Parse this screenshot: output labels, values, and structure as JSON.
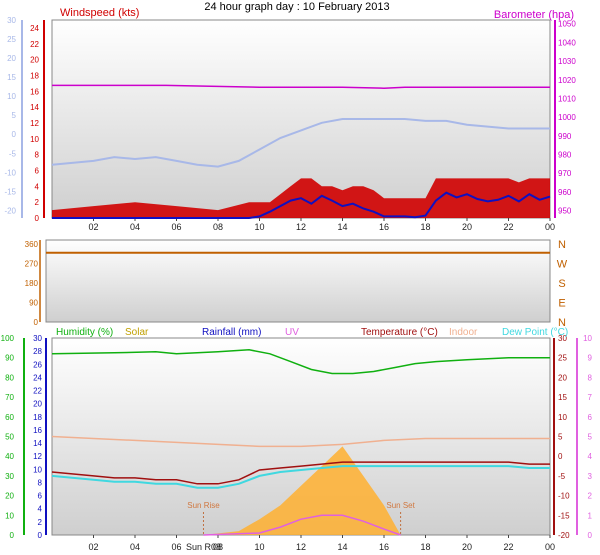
{
  "title": "24 hour graph day : 10 February 2013",
  "colors": {
    "wind": "#d00000",
    "barometer": "#cc00cc",
    "gust_line": "#1010c0",
    "temp_line": "#a01010",
    "dew_line": "#40d8e0",
    "humidity_line": "#10b010",
    "indoor_line": "#f0b090",
    "solar_fill": "#ffb030",
    "uv_line": "#e060e0",
    "direction": "#c06000",
    "axis_blue": "#a8b8e8"
  },
  "chart_data": [
    {
      "type": "line",
      "id": "wind_baro",
      "title": "",
      "x_ticks": [
        "02",
        "04",
        "06",
        "08",
        "10",
        "12",
        "14",
        "16",
        "18",
        "20",
        "22",
        "00"
      ],
      "left_axis": {
        "label": "Windspeed (kts)",
        "ticks": [
          "0",
          "2",
          "4",
          "6",
          "8",
          "10",
          "12",
          "14",
          "16",
          "18",
          "20",
          "22",
          "24"
        ],
        "ylim": [
          0,
          25
        ]
      },
      "outer_left_axis": {
        "ticks": [
          "-20",
          "-15",
          "-10",
          "-5",
          "0",
          "5",
          "10",
          "15",
          "20",
          "25",
          "30"
        ],
        "ylim": [
          -22,
          30
        ]
      },
      "right_axis": {
        "label": "Barometer (hpa)",
        "ticks": [
          "950",
          "960",
          "970",
          "980",
          "990",
          "1000",
          "1010",
          "1020",
          "1030",
          "1040",
          "1050"
        ],
        "ylim": [
          946,
          1052
        ]
      },
      "series": [
        {
          "axis": "right",
          "hours": [
            0,
            5.5,
            10,
            14,
            16,
            17,
            24
          ],
          "values": [
            1017,
            1017,
            1016,
            1016,
            1015.5,
            1016,
            1016
          ]
        },
        {
          "axis": "outer_left",
          "hours": [
            0,
            2,
            3,
            4,
            5,
            6,
            7,
            8,
            9,
            10,
            11,
            12,
            13,
            14,
            15,
            16,
            17,
            18,
            19,
            20,
            21,
            22,
            23,
            24
          ],
          "values": [
            -8,
            -7,
            -6,
            -6.5,
            -6,
            -7,
            -8,
            -8.5,
            -7,
            -4,
            -1,
            1,
            3,
            4,
            4,
            4,
            4,
            3.5,
            3.5,
            2.5,
            2,
            1.5,
            1.5,
            1.5
          ]
        },
        {
          "axis": "left",
          "hours": [
            0,
            2,
            4,
            6,
            8,
            9.5,
            10,
            10.5,
            11,
            11.5,
            12,
            12.5,
            13,
            13.5,
            14,
            14.5,
            15,
            15.5,
            16,
            16.5,
            17,
            17.5,
            18,
            18.5,
            19,
            19.5,
            20,
            20.5,
            21,
            21.5,
            22,
            22.5,
            23,
            23.5,
            24
          ],
          "values": [
            0,
            0,
            0,
            0,
            0,
            0,
            0.2,
            0.8,
            1.5,
            2.2,
            2.5,
            1.8,
            2.8,
            2.2,
            1.5,
            1.8,
            1.2,
            0.8,
            0.2,
            0.2,
            0.2,
            0.1,
            0.3,
            2.2,
            3.2,
            2.6,
            3.0,
            2.4,
            2.1,
            2.3,
            2.8,
            2.1,
            3.0,
            2.3,
            2.7
          ]
        },
        {
          "axis": "left",
          "hours": [
            0,
            2,
            4,
            6,
            8,
            9.5,
            10,
            10.5,
            11,
            11.5,
            12,
            12.5,
            13,
            13.5,
            14,
            14.5,
            15,
            15.5,
            16,
            16.5,
            17,
            17.5,
            18,
            18.5,
            19,
            19.5,
            20,
            20.5,
            21,
            21.5,
            22,
            22.5,
            23,
            23.5,
            24
          ],
          "values": [
            1,
            1.5,
            2,
            1.5,
            1,
            2,
            2,
            2,
            3,
            4,
            5,
            5,
            4,
            4,
            3.5,
            4,
            4,
            3.5,
            2.5,
            2.5,
            2.5,
            2.5,
            2.5,
            5,
            5,
            5,
            5,
            5,
            5,
            5,
            5,
            4.5,
            5,
            5,
            5
          ]
        }
      ]
    },
    {
      "type": "line",
      "id": "direction",
      "title": "",
      "x_ticks": [],
      "left_axis": {
        "ticks": [
          "0",
          "90",
          "180",
          "270",
          "360"
        ],
        "ylim": [
          0,
          360
        ]
      },
      "right_axis": {
        "ticks": [
          "N",
          "E",
          "S",
          "W",
          "N"
        ]
      },
      "series": [
        {
          "axis": "left",
          "hours": [
            0,
            24
          ],
          "values": [
            320,
            320
          ]
        }
      ]
    },
    {
      "type": "line",
      "id": "thermo",
      "title": "",
      "legend": [
        "Humidity (%)",
        "Solar",
        "Rainfall (mm)",
        "UV",
        "Temperature (°C)",
        "Indoor",
        "Dew Point (°C)"
      ],
      "x_ticks": [
        "02",
        "04",
        "06",
        "08",
        "10",
        "12",
        "14",
        "16",
        "18",
        "20",
        "22",
        "00"
      ],
      "humidity_axis": {
        "ticks": [
          "0",
          "10",
          "20",
          "30",
          "40",
          "50",
          "60",
          "70",
          "80",
          "90",
          "100"
        ],
        "ylim": [
          0,
          100
        ]
      },
      "rain_axis": {
        "ticks": [
          "0",
          "2",
          "4",
          "6",
          "8",
          "10",
          "12",
          "14",
          "16",
          "18",
          "20",
          "22",
          "24",
          "26",
          "28",
          "30"
        ],
        "ylim": [
          0,
          30
        ]
      },
      "temp_axis": {
        "ticks": [
          "-20",
          "-15",
          "-10",
          "-5",
          "0",
          "5",
          "10",
          "15",
          "20",
          "25",
          "30"
        ],
        "ylim": [
          -20,
          30
        ]
      },
      "uv_axis": {
        "ticks": [
          "0",
          "1",
          "2",
          "3",
          "4",
          "5",
          "6",
          "7",
          "8",
          "9",
          "10"
        ],
        "ylim": [
          0,
          10
        ]
      },
      "annotations": {
        "sun_rise": "Sun Rise",
        "sun_set": "Sun Set",
        "sunrise_time": "Sun R08",
        "sunrise_hour": 7.3,
        "sunset_hour": 16.8
      },
      "series": [
        {
          "axis": "humidity",
          "hours": [
            0,
            3,
            5,
            6,
            8,
            9.5,
            10.5,
            11.5,
            12.5,
            13.5,
            14.5,
            15.5,
            16.5,
            17.5,
            18.5,
            20,
            22,
            24
          ],
          "values": [
            92,
            92.5,
            93,
            92,
            93,
            94,
            92,
            88,
            84,
            82,
            82,
            83,
            85,
            87,
            88,
            89,
            90,
            90
          ]
        },
        {
          "axis": "temp",
          "hours": [
            0,
            2,
            3,
            4,
            5,
            6,
            7,
            8,
            9,
            10,
            11,
            12,
            13,
            14,
            15,
            16,
            17,
            18,
            19,
            20,
            21,
            22,
            23,
            24
          ],
          "values": [
            -4.0,
            -5.0,
            -5.5,
            -5.5,
            -6.0,
            -6.0,
            -7.0,
            -7.0,
            -6.0,
            -3.5,
            -3.0,
            -2.5,
            -2.0,
            -1.5,
            -1.5,
            -1.5,
            -1.5,
            -1.5,
            -1.5,
            -1.5,
            -1.5,
            -1.5,
            -2.0,
            -2.0
          ]
        },
        {
          "axis": "temp",
          "hours": [
            0,
            2,
            3,
            4,
            5,
            6,
            7,
            8,
            9,
            10,
            11,
            12,
            13,
            14,
            15,
            16,
            17,
            18,
            19,
            20,
            21,
            22,
            23,
            24
          ],
          "values": [
            -5.0,
            -6.0,
            -6.5,
            -6.5,
            -7.0,
            -7.0,
            -8.0,
            -8.0,
            -7.0,
            -5.0,
            -4.0,
            -3.5,
            -3.0,
            -2.5,
            -2.5,
            -2.5,
            -2.5,
            -2.5,
            -2.5,
            -2.5,
            -2.5,
            -2.5,
            -3.0,
            -3.0
          ]
        },
        {
          "axis": "temp",
          "hours": [
            0,
            2,
            4,
            6,
            8,
            10,
            12,
            14,
            16,
            18,
            20,
            22,
            24
          ],
          "values": [
            5.0,
            4.5,
            4.0,
            3.5,
            3.0,
            2.5,
            2.5,
            3.0,
            4.0,
            4.5,
            4.5,
            4.5,
            4.5
          ]
        },
        {
          "axis": "uv",
          "hours": [
            7.3,
            9,
            10,
            11,
            12,
            13,
            14,
            15,
            16,
            16.8
          ],
          "values": [
            0,
            0.2,
            0.8,
            1.5,
            2.5,
            3.5,
            4.5,
            3.0,
            1.5,
            0
          ]
        },
        {
          "axis": "uv",
          "hours": [
            7.3,
            10,
            11,
            12,
            13,
            14,
            15,
            16,
            16.8
          ],
          "values": [
            0,
            0.1,
            0.4,
            0.8,
            1.0,
            1.0,
            0.7,
            0.3,
            0
          ]
        }
      ]
    }
  ]
}
